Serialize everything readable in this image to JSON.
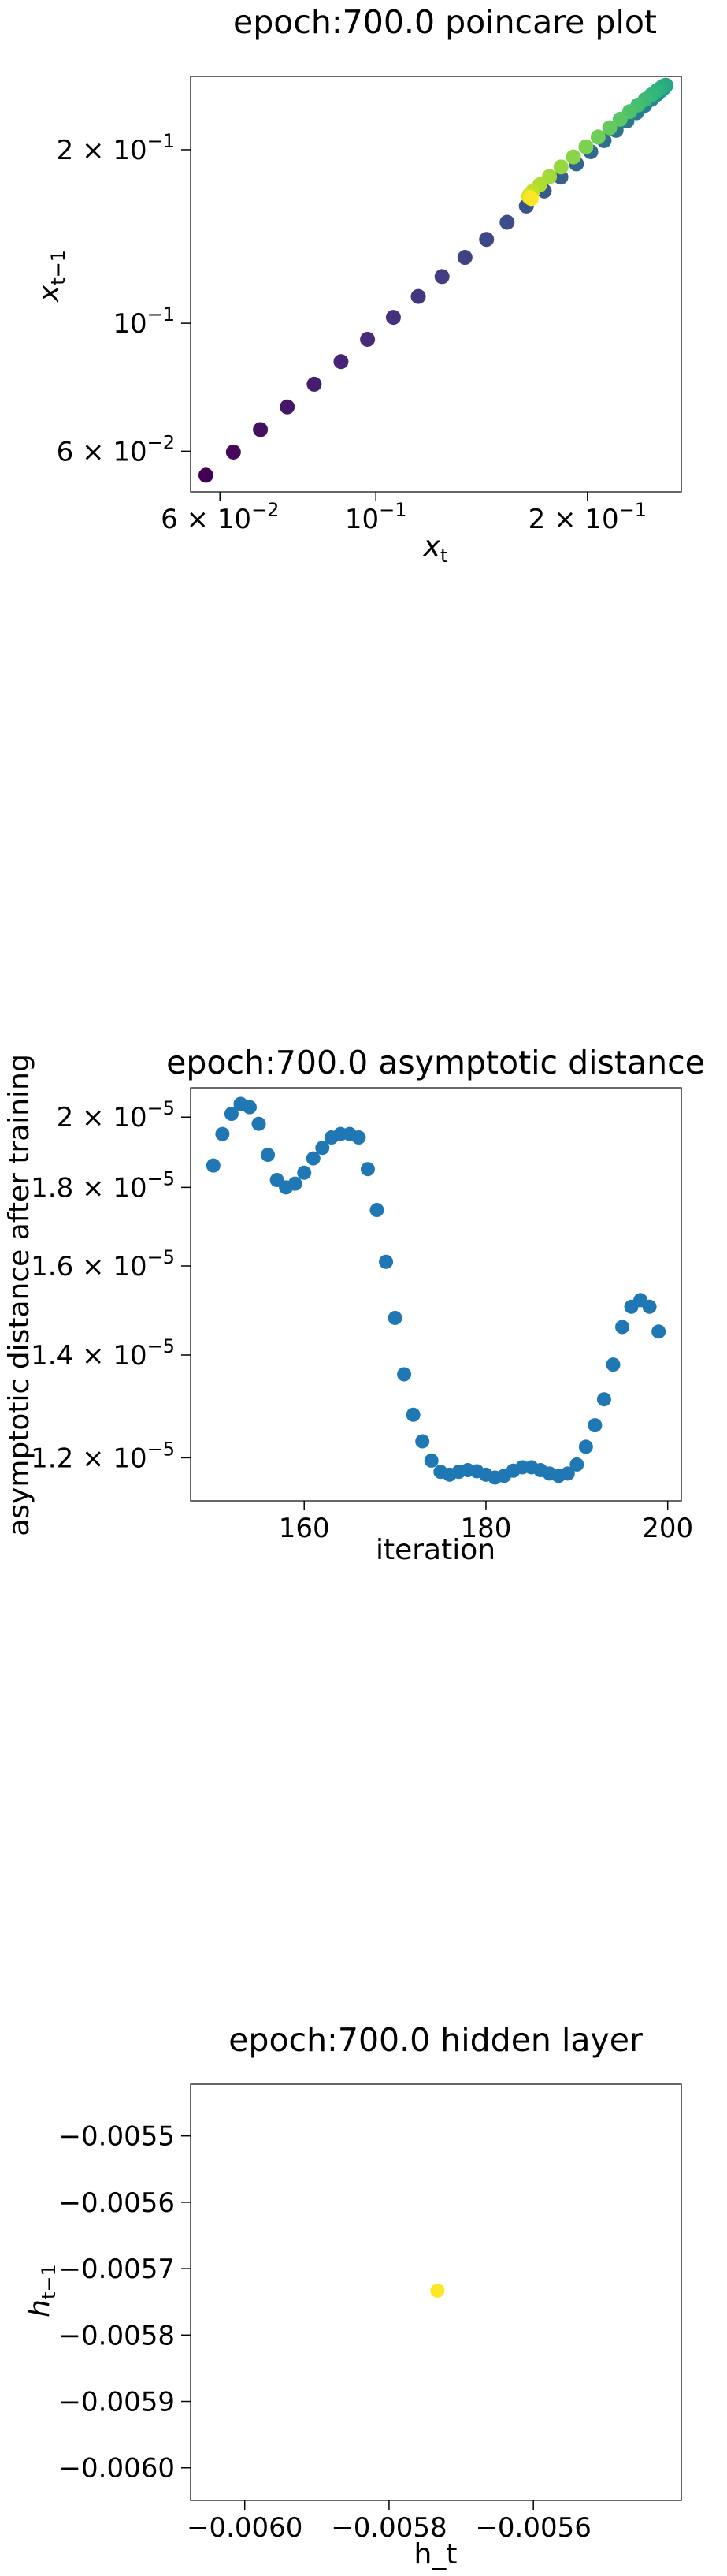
{
  "chart_data": [
    {
      "type": "scatter",
      "title": "epoch:700.0 poincare plot",
      "xlabel": {
        "base": "x",
        "sub": "t"
      },
      "ylabel": {
        "base": "x",
        "sub": "t−1"
      },
      "xscale": "log",
      "yscale": "log",
      "xlim": [
        0.0545,
        0.272
      ],
      "ylim": [
        0.051,
        0.268
      ],
      "xticks": [
        {
          "value": 0.06,
          "label": {
            "mant": "6 × 10",
            "exp": "−2"
          }
        },
        {
          "value": 0.1,
          "label": {
            "mant": "10",
            "exp": "−1"
          }
        },
        {
          "value": 0.2,
          "label": {
            "mant": "2 × 10",
            "exp": "−1"
          }
        }
      ],
      "yticks": [
        {
          "value": 0.06,
          "label": {
            "mant": "6 × 10",
            "exp": "−2"
          }
        },
        {
          "value": 0.1,
          "label": {
            "mant": "10",
            "exp": "−1"
          }
        },
        {
          "value": 0.2,
          "label": {
            "mant": "2 × 10",
            "exp": "−1"
          }
        }
      ],
      "colormap": "viridis",
      "points": [
        {
          "x": 0.0573,
          "y": 0.0545,
          "c": 0.0
        },
        {
          "x": 0.0627,
          "y": 0.0598,
          "c": 0.02
        },
        {
          "x": 0.0685,
          "y": 0.0654,
          "c": 0.04
        },
        {
          "x": 0.0748,
          "y": 0.0716,
          "c": 0.06
        },
        {
          "x": 0.0817,
          "y": 0.0784,
          "c": 0.08
        },
        {
          "x": 0.0892,
          "y": 0.0858,
          "c": 0.1
        },
        {
          "x": 0.0973,
          "y": 0.0938,
          "c": 0.12
        },
        {
          "x": 0.1059,
          "y": 0.1024,
          "c": 0.14
        },
        {
          "x": 0.1149,
          "y": 0.1113,
          "c": 0.16
        },
        {
          "x": 0.1242,
          "y": 0.1205,
          "c": 0.18
        },
        {
          "x": 0.1339,
          "y": 0.1301,
          "c": 0.2
        },
        {
          "x": 0.1437,
          "y": 0.1398,
          "c": 0.22
        },
        {
          "x": 0.1537,
          "y": 0.1497,
          "c": 0.24
        },
        {
          "x": 0.1637,
          "y": 0.1597,
          "c": 0.26
        },
        {
          "x": 0.1736,
          "y": 0.1696,
          "c": 0.28
        },
        {
          "x": 0.1833,
          "y": 0.1793,
          "c": 0.3
        },
        {
          "x": 0.1929,
          "y": 0.189,
          "c": 0.32
        },
        {
          "x": 0.2022,
          "y": 0.1984,
          "c": 0.34
        },
        {
          "x": 0.2112,
          "y": 0.2074,
          "c": 0.36
        },
        {
          "x": 0.2197,
          "y": 0.2161,
          "c": 0.38
        },
        {
          "x": 0.2276,
          "y": 0.2243,
          "c": 0.4
        },
        {
          "x": 0.2348,
          "y": 0.2318,
          "c": 0.42
        },
        {
          "x": 0.2412,
          "y": 0.2386,
          "c": 0.44
        },
        {
          "x": 0.2466,
          "y": 0.2445,
          "c": 0.46
        },
        {
          "x": 0.2511,
          "y": 0.2494,
          "c": 0.48
        },
        {
          "x": 0.2545,
          "y": 0.2532,
          "c": 0.5
        },
        {
          "x": 0.2569,
          "y": 0.256,
          "c": 0.52
        },
        {
          "x": 0.2582,
          "y": 0.2578,
          "c": 0.54
        },
        {
          "x": 0.2586,
          "y": 0.2587,
          "c": 0.56
        },
        {
          "x": 0.258,
          "y": 0.2586,
          "c": 0.58
        },
        {
          "x": 0.2564,
          "y": 0.2576,
          "c": 0.6
        },
        {
          "x": 0.254,
          "y": 0.2556,
          "c": 0.62
        },
        {
          "x": 0.2507,
          "y": 0.2528,
          "c": 0.64
        },
        {
          "x": 0.2466,
          "y": 0.249,
          "c": 0.66
        },
        {
          "x": 0.2417,
          "y": 0.2444,
          "c": 0.68
        },
        {
          "x": 0.236,
          "y": 0.239,
          "c": 0.7
        },
        {
          "x": 0.2296,
          "y": 0.2328,
          "c": 0.72
        },
        {
          "x": 0.2226,
          "y": 0.2258,
          "c": 0.74
        },
        {
          "x": 0.2151,
          "y": 0.2183,
          "c": 0.76
        },
        {
          "x": 0.2071,
          "y": 0.2104,
          "c": 0.78
        },
        {
          "x": 0.199,
          "y": 0.2023,
          "c": 0.8
        },
        {
          "x": 0.191,
          "y": 0.1943,
          "c": 0.82
        },
        {
          "x": 0.1834,
          "y": 0.1867,
          "c": 0.84
        },
        {
          "x": 0.1766,
          "y": 0.1797,
          "c": 0.86
        },
        {
          "x": 0.1711,
          "y": 0.1739,
          "c": 0.88
        },
        {
          "x": 0.1672,
          "y": 0.1695,
          "c": 0.9
        },
        {
          "x": 0.1652,
          "y": 0.1668,
          "c": 0.92
        },
        {
          "x": 0.165,
          "y": 0.1659,
          "c": 0.94
        },
        {
          "x": 0.1655,
          "y": 0.1654,
          "c": 0.96
        },
        {
          "x": 0.166,
          "y": 0.165,
          "c": 0.98
        },
        {
          "x": 0.1664,
          "y": 0.1646,
          "c": 1.0
        }
      ]
    },
    {
      "type": "scatter",
      "title": "epoch:700.0 asymptotic distance",
      "xlabel": "iteration",
      "ylabel": "asymptotic distance after training",
      "xscale": "linear",
      "yscale": "log",
      "xlim": [
        147.5,
        201.5
      ],
      "ylim": [
        1.125e-05,
        2.09e-05
      ],
      "xticks": [
        {
          "value": 160,
          "label": "160"
        },
        {
          "value": 180,
          "label": "180"
        },
        {
          "value": 200,
          "label": "200"
        }
      ],
      "yticks": [
        {
          "value": 1.2e-05,
          "label": {
            "mant": "1.2 × 10",
            "exp": "−5"
          }
        },
        {
          "value": 1.4e-05,
          "label": {
            "mant": "1.4 × 10",
            "exp": "−5"
          }
        },
        {
          "value": 1.6e-05,
          "label": {
            "mant": "1.6 × 10",
            "exp": "−5"
          }
        },
        {
          "value": 1.8e-05,
          "label": {
            "mant": "1.8 × 10",
            "exp": "−5"
          }
        },
        {
          "value": 2e-05,
          "label": {
            "mant": "2 × 10",
            "exp": "−5"
          }
        }
      ],
      "color": "#1f77b4",
      "x": [
        150,
        151,
        152,
        153,
        154,
        155,
        156,
        157,
        158,
        159,
        160,
        161,
        162,
        163,
        164,
        165,
        166,
        167,
        168,
        169,
        170,
        171,
        172,
        173,
        174,
        175,
        176,
        177,
        178,
        179,
        180,
        181,
        182,
        183,
        184,
        185,
        186,
        187,
        188,
        189,
        190,
        191,
        192,
        193,
        194,
        195,
        196,
        197,
        198,
        199
      ],
      "y": [
        1.86e-05,
        1.95e-05,
        2.01e-05,
        2.04e-05,
        2.03e-05,
        1.98e-05,
        1.89e-05,
        1.82e-05,
        1.8e-05,
        1.81e-05,
        1.84e-05,
        1.88e-05,
        1.91e-05,
        1.94e-05,
        1.95e-05,
        1.95e-05,
        1.94e-05,
        1.85e-05,
        1.74e-05,
        1.61e-05,
        1.48e-05,
        1.36e-05,
        1.28e-05,
        1.23e-05,
        1.195e-05,
        1.175e-05,
        1.17e-05,
        1.175e-05,
        1.178e-05,
        1.176e-05,
        1.17e-05,
        1.165e-05,
        1.168e-05,
        1.177e-05,
        1.183e-05,
        1.183e-05,
        1.178e-05,
        1.172e-05,
        1.168e-05,
        1.172e-05,
        1.188e-05,
        1.22e-05,
        1.26e-05,
        1.31e-05,
        1.38e-05,
        1.46e-05,
        1.505e-05,
        1.52e-05,
        1.505e-05,
        1.45e-05
      ]
    },
    {
      "type": "scatter",
      "title": "epoch:700.0 hidden layer",
      "xlabel": "h_t",
      "ylabel": {
        "base": "h",
        "sub": "t−1"
      },
      "xscale": "linear",
      "yscale": "linear",
      "xlim": [
        -0.006075,
        -0.005395
      ],
      "ylim": [
        -0.006049,
        -0.005422
      ],
      "xticks": [
        {
          "value": -0.006,
          "label": "−0.0060"
        },
        {
          "value": -0.0058,
          "label": "−0.0058"
        },
        {
          "value": -0.0056,
          "label": "−0.0056"
        }
      ],
      "yticks": [
        {
          "value": -0.0055,
          "label": "−0.0055"
        },
        {
          "value": -0.0056,
          "label": "−0.0056"
        },
        {
          "value": -0.0057,
          "label": "−0.0057"
        },
        {
          "value": -0.0058,
          "label": "−0.0058"
        },
        {
          "value": -0.0059,
          "label": "−0.0059"
        },
        {
          "value": -0.006,
          "label": "−0.0060"
        }
      ],
      "color": "#fde725",
      "points": [
        {
          "x": -0.005733,
          "y": -0.005733
        }
      ]
    }
  ]
}
